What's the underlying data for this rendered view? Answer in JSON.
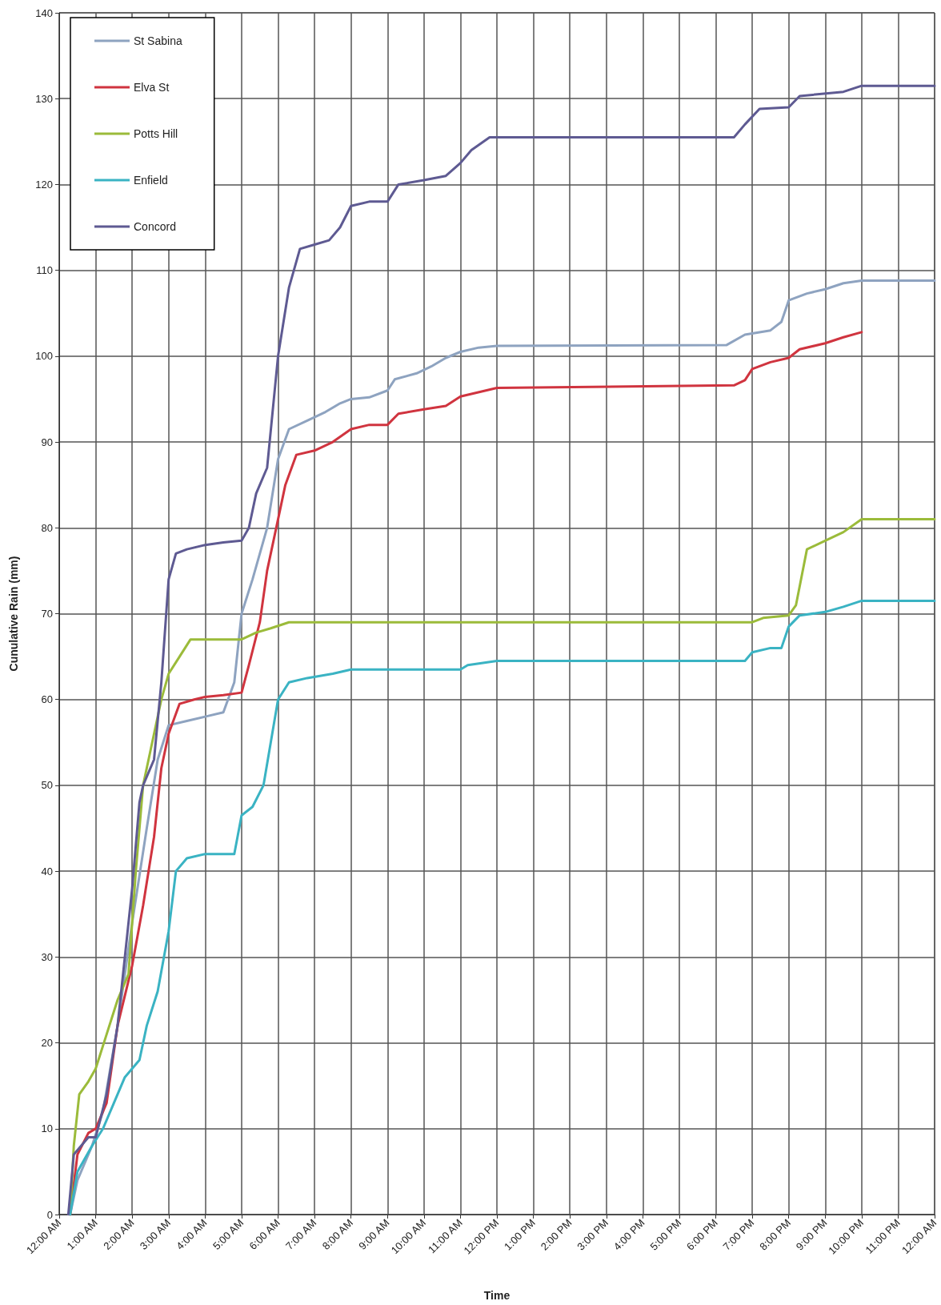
{
  "chart_data": {
    "type": "line",
    "xlabel": "Time",
    "ylabel": "Cunulative Rain (mm)",
    "xlim": [
      0,
      24
    ],
    "ylim": [
      0,
      140
    ],
    "xticks": [
      {
        "value": 0,
        "label": "12:00 AM"
      },
      {
        "value": 1,
        "label": "1:00 AM"
      },
      {
        "value": 2,
        "label": "2:00 AM"
      },
      {
        "value": 3,
        "label": "3:00 AM"
      },
      {
        "value": 4,
        "label": "4:00 AM"
      },
      {
        "value": 5,
        "label": "5:00 AM"
      },
      {
        "value": 6,
        "label": "6:00 AM"
      },
      {
        "value": 7,
        "label": "7:00 AM"
      },
      {
        "value": 8,
        "label": "8:00 AM"
      },
      {
        "value": 9,
        "label": "9:00 AM"
      },
      {
        "value": 10,
        "label": "10:00 AM"
      },
      {
        "value": 11,
        "label": "11:00 AM"
      },
      {
        "value": 12,
        "label": "12:00 PM"
      },
      {
        "value": 13,
        "label": "1:00 PM"
      },
      {
        "value": 14,
        "label": "2:00 PM"
      },
      {
        "value": 15,
        "label": "3:00 PM"
      },
      {
        "value": 16,
        "label": "4:00 PM"
      },
      {
        "value": 17,
        "label": "5:00 PM"
      },
      {
        "value": 18,
        "label": "6:00 PM"
      },
      {
        "value": 19,
        "label": "7:00 PM"
      },
      {
        "value": 20,
        "label": "8:00 PM"
      },
      {
        "value": 21,
        "label": "9:00 PM"
      },
      {
        "value": 22,
        "label": "10:00 PM"
      },
      {
        "value": 23,
        "label": "11:00 PM"
      },
      {
        "value": 24,
        "label": "12:00 AM"
      }
    ],
    "yticks": [
      0,
      10,
      20,
      30,
      40,
      50,
      60,
      70,
      80,
      90,
      100,
      110,
      120,
      130,
      140
    ],
    "grid": true,
    "legend": "top left",
    "marker": "none",
    "line_style": "solid",
    "series": [
      {
        "name": "St Sabina",
        "color": "#8ea3c0",
        "x": [
          0.3,
          0.5,
          0.9,
          1.2,
          1.6,
          2.0,
          2.4,
          2.7,
          3.0,
          3.5,
          4.0,
          4.5,
          4.8,
          5.0,
          5.3,
          5.7,
          6.0,
          6.3,
          6.8,
          7.3,
          7.7,
          8.0,
          8.5,
          9.0,
          9.2,
          9.8,
          10.2,
          10.6,
          11.0,
          11.5,
          12.0,
          18.3,
          18.8,
          19.5,
          19.8,
          20.0,
          20.5,
          21.0,
          21.5,
          22.0,
          24.0
        ],
        "values": [
          0,
          4,
          8,
          12,
          22,
          34,
          45,
          53,
          57,
          57.5,
          58,
          58.5,
          62,
          70,
          74,
          80,
          88,
          91.5,
          92.5,
          93.5,
          94.5,
          95,
          95.2,
          96,
          97.3,
          98,
          98.8,
          99.8,
          100.5,
          101,
          101.2,
          101.3,
          102.5,
          103,
          104,
          106.5,
          107.3,
          107.8,
          108.5,
          108.8,
          108.8
        ]
      },
      {
        "name": "Elva St",
        "color": "#d0343f",
        "x": [
          0.3,
          0.5,
          0.8,
          1.0,
          1.3,
          1.6,
          2.0,
          2.3,
          2.6,
          2.8,
          3.0,
          3.3,
          3.7,
          4.0,
          4.5,
          5.0,
          5.2,
          5.5,
          5.7,
          6.0,
          6.2,
          6.5,
          7.0,
          7.5,
          8.0,
          8.5,
          9.0,
          9.3,
          10.0,
          10.6,
          11.0,
          12.0,
          18.5,
          18.8,
          19.0,
          19.5,
          20.0,
          20.3,
          21.0,
          21.5,
          22.0
        ],
        "values": [
          0,
          7,
          9.5,
          10,
          13,
          22,
          29,
          36,
          44,
          52,
          56,
          59.5,
          60,
          60.3,
          60.5,
          60.8,
          64,
          69,
          75,
          81,
          85,
          88.5,
          89,
          90,
          91.5,
          92,
          92,
          93.3,
          93.8,
          94.2,
          95.3,
          96.3,
          96.6,
          97.2,
          98.5,
          99.3,
          99.8,
          100.8,
          101.5,
          102.2,
          102.8
        ]
      },
      {
        "name": "Potts Hill",
        "color": "#9bbb3a",
        "x": [
          0.3,
          0.4,
          0.55,
          0.8,
          1.0,
          1.3,
          1.6,
          1.9,
          2.1,
          2.3,
          2.5,
          2.8,
          3.0,
          3.3,
          3.6,
          4.0,
          5.0,
          5.4,
          5.8,
          6.3,
          19.0,
          19.3,
          20.0,
          20.2,
          20.5,
          21.0,
          21.5,
          22.0,
          24.0
        ],
        "values": [
          0,
          8,
          14,
          15.5,
          17,
          21,
          25,
          28,
          40,
          50,
          54,
          60,
          63,
          65,
          67,
          67,
          67,
          67.8,
          68.3,
          69,
          69,
          69.5,
          69.8,
          71,
          77.5,
          78.5,
          79.5,
          81,
          81
        ]
      },
      {
        "name": "Enfield",
        "color": "#3ab3c3",
        "x": [
          0.3,
          0.5,
          0.9,
          1.2,
          1.5,
          1.8,
          2.2,
          2.4,
          2.7,
          3.0,
          3.2,
          3.5,
          4.0,
          4.8,
          5.0,
          5.3,
          5.6,
          5.8,
          6.0,
          6.3,
          6.8,
          7.5,
          8.0,
          11.0,
          11.2,
          12.0,
          18.8,
          19.0,
          19.5,
          19.8,
          20.0,
          20.3,
          21.0,
          21.5,
          22.0,
          24.0
        ],
        "values": [
          0,
          5,
          8,
          10,
          13,
          16,
          18,
          22,
          26,
          33,
          40,
          41.5,
          42,
          42,
          46.5,
          47.5,
          50,
          55,
          60,
          62,
          62.5,
          63,
          63.5,
          63.5,
          64,
          64.5,
          64.5,
          65.5,
          66,
          66,
          68.5,
          69.8,
          70.2,
          70.8,
          71.5,
          71.5
        ]
      },
      {
        "name": "Concord",
        "color": "#5e5a92",
        "x": [
          0.25,
          0.4,
          0.8,
          1.0,
          1.3,
          1.6,
          2.0,
          2.2,
          2.3,
          2.6,
          2.8,
          3.0,
          3.2,
          3.5,
          4.0,
          4.5,
          5.0,
          5.2,
          5.4,
          5.7,
          6.0,
          6.3,
          6.6,
          7.0,
          7.4,
          7.7,
          8.0,
          8.5,
          9.0,
          9.3,
          10.0,
          10.6,
          11.0,
          11.3,
          11.8,
          18.5,
          18.8,
          19.2,
          20.0,
          20.3,
          21.5,
          22.0,
          24.0
        ],
        "values": [
          0,
          7,
          9,
          9,
          14,
          22,
          38,
          48,
          50,
          53,
          62,
          74,
          77,
          77.5,
          78,
          78.3,
          78.5,
          80,
          84,
          87,
          100,
          108,
          112.5,
          113,
          113.5,
          115,
          117.5,
          118,
          118,
          120,
          120.5,
          121,
          122.5,
          124,
          125.5,
          125.5,
          127,
          128.8,
          129,
          130.3,
          130.8,
          131.5,
          131.5
        ]
      }
    ]
  }
}
